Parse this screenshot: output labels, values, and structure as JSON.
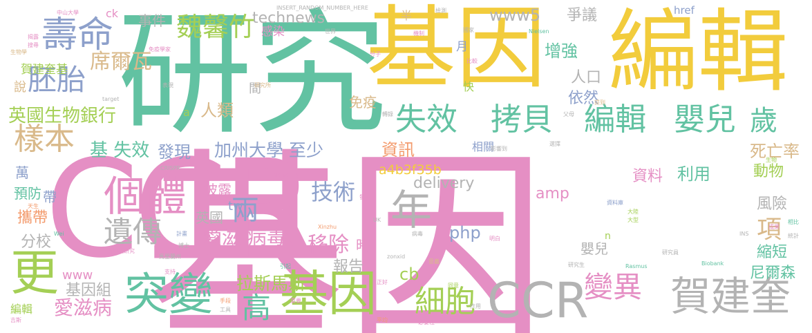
{
  "cloud": {
    "palette": {
      "pink": "#e58fc4",
      "yellow": "#f2cc3c",
      "teal": "#62c2a2",
      "green": "#a4cf55",
      "gray": "#b3b3b3",
      "tan": "#d9b98a",
      "blue": "#8da0cb",
      "orange": "#f39b6d"
    },
    "words": [
      {
        "text": "基因",
        "color": "pink"
      },
      {
        "text": "CCR",
        "color": "pink"
      },
      {
        "text": "研究",
        "color": "teal"
      },
      {
        "text": "基因",
        "color": "yellow"
      },
      {
        "text": "編輯",
        "color": "yellow"
      },
      {
        "text": "CCR",
        "color": "gray"
      },
      {
        "text": "賀建奎",
        "color": "gray"
      },
      {
        "text": "基因",
        "color": "green"
      },
      {
        "text": "突變",
        "color": "teal"
      },
      {
        "text": "個體",
        "color": "pink"
      },
      {
        "text": "壽命",
        "color": "blue"
      },
      {
        "text": "更",
        "color": "green"
      },
      {
        "text": "年",
        "color": "gray"
      },
      {
        "text": "失效",
        "color": "teal"
      },
      {
        "text": "拷貝",
        "color": "teal"
      },
      {
        "text": "編輯",
        "color": "teal"
      },
      {
        "text": "嬰兒",
        "color": "teal"
      },
      {
        "text": "歲",
        "color": "teal"
      },
      {
        "text": "細胞",
        "color": "green"
      },
      {
        "text": "變異",
        "color": "pink"
      },
      {
        "text": "遺傳",
        "color": "gray"
      },
      {
        "text": "兩",
        "color": "blue"
      },
      {
        "text": "高",
        "color": "teal"
      },
      {
        "text": "樣本",
        "color": "tan"
      },
      {
        "text": "胚胎",
        "color": "blue"
      },
      {
        "text": "魏馨竹",
        "color": "green"
      },
      {
        "text": "技術",
        "color": "blue"
      },
      {
        "text": "移除",
        "color": "pink"
      },
      {
        "text": "項",
        "color": "tan"
      },
      {
        "text": "英國生物銀行",
        "color": "green"
      },
      {
        "text": "席爾瓦",
        "color": "tan"
      },
      {
        "text": "愛滋 病毒",
        "color": "pink"
      },
      {
        "text": "加州大學 至少",
        "color": "blue"
      },
      {
        "text": "拉斯馬斯",
        "color": "green"
      },
      {
        "text": "愛滋病",
        "color": "pink"
      },
      {
        "text": "基 失效",
        "color": "teal"
      },
      {
        "text": "人類",
        "color": "tan"
      },
      {
        "text": "發現",
        "color": "blue"
      },
      {
        "text": "technews",
        "color": "gray"
      },
      {
        "text": "www5",
        "color": "gray"
      },
      {
        "text": "delivery",
        "color": "gray"
      },
      {
        "text": "php",
        "color": "blue"
      },
      {
        "text": "cb",
        "color": "green"
      },
      {
        "text": "amp",
        "color": "pink"
      },
      {
        "text": "資訊",
        "color": "orange"
      },
      {
        "text": "a4b3f35b",
        "color": "yellow"
      },
      {
        "text": "增強",
        "color": "teal"
      },
      {
        "text": "爭議",
        "color": "gray"
      },
      {
        "text": "依然",
        "color": "blue"
      },
      {
        "text": "人口",
        "color": "gray"
      },
      {
        "text": "免疫",
        "color": "tan"
      },
      {
        "text": "死亡率",
        "color": "tan"
      },
      {
        "text": "資料",
        "color": "pink"
      },
      {
        "text": "利用",
        "color": "teal"
      },
      {
        "text": "動物",
        "color": "green"
      },
      {
        "text": "風險",
        "color": "gray"
      },
      {
        "text": "縮短",
        "color": "teal"
      },
      {
        "text": "尼爾森",
        "color": "teal"
      },
      {
        "text": "嬰兒",
        "color": "gray"
      },
      {
        "text": "報告",
        "color": "gray"
      },
      {
        "text": "基因組",
        "color": "gray"
      },
      {
        "text": "分校",
        "color": "gray"
      },
      {
        "text": "英國",
        "color": "gray"
      },
      {
        "text": "披露",
        "color": "pink"
      },
      {
        "text": "攜帶",
        "color": "orange"
      },
      {
        "text": "預防",
        "color": "teal"
      },
      {
        "text": "萬",
        "color": "blue"
      },
      {
        "text": "帶",
        "color": "blue"
      },
      {
        "text": "事件",
        "color": "gray"
      },
      {
        "text": "感染",
        "color": "pink"
      },
      {
        "text": "說",
        "color": "tan"
      },
      {
        "text": "賀建奎基",
        "color": "green"
      },
      {
        "text": "時",
        "color": "pink"
      },
      {
        "text": "tw",
        "color": "blue"
      },
      {
        "text": "www",
        "color": "pink"
      },
      {
        "text": "編輯",
        "color": "green"
      },
      {
        "text": "相關",
        "color": "blue"
      },
      {
        "text": "月",
        "color": "blue"
      },
      {
        "text": "快",
        "color": "green"
      },
      {
        "text": "間",
        "color": "gray"
      },
      {
        "text": "a",
        "color": "green"
      },
      {
        "text": "href",
        "color": "blue"
      },
      {
        "text": "ck",
        "color": "pink"
      },
      {
        "text": "半",
        "color": "tan"
      },
      {
        "text": "n",
        "color": "green"
      },
      {
        "text": "INSERT_RANDOM_NUMBER_HERE",
        "color": "gray"
      },
      {
        "text": "中山大學",
        "color": "pink"
      },
      {
        "text": "免疫學家",
        "color": "pink"
      },
      {
        "text": "Nielsen",
        "color": "teal"
      },
      {
        "text": "世界",
        "color": "gray"
      },
      {
        "text": "揭露",
        "color": "pink"
      },
      {
        "text": "搜尋",
        "color": "pink"
      },
      {
        "text": "生物學",
        "color": "tan"
      },
      {
        "text": "分子",
        "color": "pink"
      },
      {
        "text": "Xinzhu",
        "color": "orange"
      },
      {
        "text": "Rasmus",
        "color": "teal"
      },
      {
        "text": "Biobank",
        "color": "teal"
      },
      {
        "text": "CRISPR",
        "color": "gray"
      },
      {
        "text": "Wei",
        "color": "teal"
      },
      {
        "text": "UK",
        "color": "gray"
      },
      {
        "text": "target",
        "color": "gray"
      },
      {
        "text": "blank",
        "color": "pink"
      },
      {
        "text": "研究所",
        "color": "tan"
      },
      {
        "text": "研究員",
        "color": "gray"
      },
      {
        "text": "影響到",
        "color": "gray"
      },
      {
        "text": "資料庫",
        "color": "blue"
      },
      {
        "text": "斯坦福研究",
        "color": "pink"
      },
      {
        "text": "同意",
        "color": "green"
      },
      {
        "text": "博士",
        "color": "gray"
      },
      {
        "text": "天生",
        "color": "orange"
      },
      {
        "text": "平均",
        "color": "orange"
      },
      {
        "text": "必要性",
        "color": "pink"
      },
      {
        "text": "病毒",
        "color": "gray"
      },
      {
        "text": "成果",
        "color": "pink"
      },
      {
        "text": "引起",
        "color": "teal"
      },
      {
        "text": "INS",
        "color": "gray"
      },
      {
        "text": "父母",
        "color": "gray"
      },
      {
        "text": "相比",
        "color": "teal"
      },
      {
        "text": "提到",
        "color": "tan"
      },
      {
        "text": "明白",
        "color": "pink"
      },
      {
        "text": "計畫",
        "color": "blue"
      },
      {
        "text": "國家",
        "color": "gray"
      },
      {
        "text": "選擇",
        "color": "gray"
      },
      {
        "text": "轉錄",
        "color": "gray"
      },
      {
        "text": "發表",
        "color": "pink"
      },
      {
        "text": "重要",
        "color": "pink"
      },
      {
        "text": "支持",
        "color": "pink"
      },
      {
        "text": "作用",
        "color": "gray"
      },
      {
        "text": "手段",
        "color": "orange"
      },
      {
        "text": "統計",
        "color": "gray"
      },
      {
        "text": "正好",
        "color": "pink"
      },
      {
        "text": "表現",
        "color": "gray"
      },
      {
        "text": "比較",
        "color": "pink"
      },
      {
        "text": "檢測",
        "color": "gray"
      },
      {
        "text": "大型",
        "color": "green"
      },
      {
        "text": "大陸",
        "color": "green"
      },
      {
        "text": "機制",
        "color": "pink"
      },
      {
        "text": "意義",
        "color": "tan"
      },
      {
        "text": "生物",
        "color": "green"
      },
      {
        "text": "馬里蘭州",
        "color": "gray"
      },
      {
        "text": "zonxid",
        "color": "gray"
      },
      {
        "text": "研究生",
        "color": "gray"
      },
      {
        "text": "工具",
        "color": "gray"
      },
      {
        "text": "吉斯",
        "color": "pink"
      }
    ]
  }
}
